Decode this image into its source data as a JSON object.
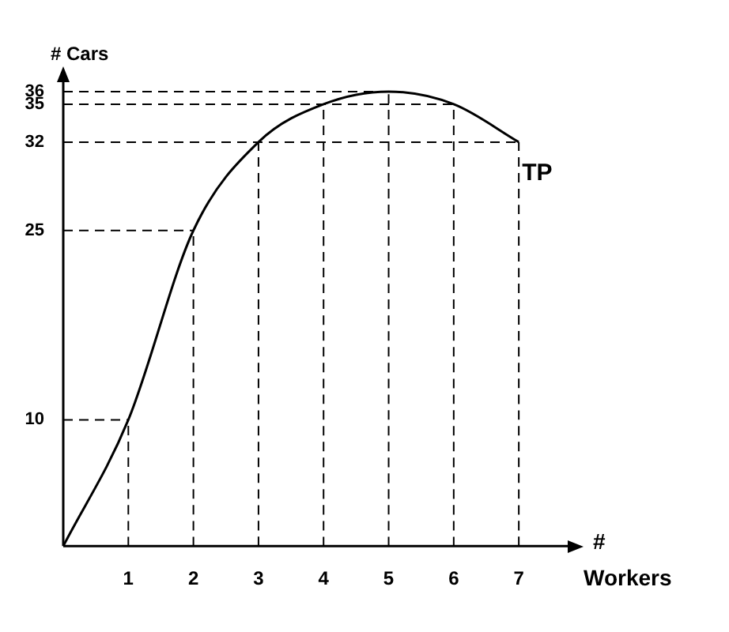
{
  "chart_data": {
    "type": "line",
    "xlabel": "# Workers",
    "ylabel": "# Cars",
    "x": [
      0,
      1,
      2,
      3,
      4,
      5,
      6,
      7
    ],
    "series": [
      {
        "name": "TP",
        "color": "#000000",
        "values": [
          0,
          10,
          25,
          32,
          35,
          36,
          35,
          32
        ]
      },
      {
        "type": "line",
        "color": "#000000",
        "line_style": "dashed",
        "x": [
          1,
          1
        ],
        "values": [
          0,
          10
        ]
      },
      {
        "type": "line",
        "color": "#000000",
        "line_style": "dashed",
        "x": [
          2,
          2
        ],
        "values": [
          0,
          25
        ]
      },
      {
        "type": "line",
        "color": "#000000",
        "line_style": "dashed",
        "x": [
          3,
          3
        ],
        "values": [
          0,
          32
        ]
      },
      {
        "type": "line",
        "color": "#000000",
        "line_style": "dashed",
        "x": [
          4,
          4
        ],
        "values": [
          0,
          35
        ]
      },
      {
        "type": "line",
        "color": "#000000",
        "line_style": "dashed",
        "x": [
          5,
          5
        ],
        "values": [
          0,
          36
        ]
      },
      {
        "type": "line",
        "color": "#000000",
        "line_style": "dashed",
        "x": [
          6,
          6
        ],
        "values": [
          0,
          35
        ]
      },
      {
        "type": "line",
        "color": "#000000",
        "line_style": "dashed",
        "x": [
          7,
          7
        ],
        "values": [
          0,
          32
        ]
      },
      {
        "type": "line",
        "color": "#000000",
        "line_style": "dashed",
        "x": [
          0,
          1
        ],
        "values": [
          10,
          10
        ]
      },
      {
        "type": "line",
        "color": "#000000",
        "line_style": "dashed",
        "x": [
          0,
          2
        ],
        "values": [
          25,
          25
        ]
      },
      {
        "type": "line",
        "color": "#000000",
        "line_style": "dashed",
        "x": [
          0,
          7
        ],
        "values": [
          32,
          32
        ]
      },
      {
        "type": "line",
        "color": "#000000",
        "line_style": "dashed",
        "x": [
          0,
          6
        ],
        "values": [
          35,
          35
        ]
      },
      {
        "type": "line",
        "color": "#000000",
        "line_style": "dashed",
        "x": [
          0,
          5
        ],
        "values": [
          36,
          36
        ]
      }
    ],
    "xlim": [
      0,
      7.8
    ],
    "xticks": [
      1,
      2,
      3,
      4,
      5,
      6,
      7
    ],
    "ylim": [
      0,
      37
    ],
    "yticks": [
      10,
      25,
      32,
      35,
      36
    ],
    "legend": false,
    "marker": "none",
    "line_style": "solid"
  }
}
